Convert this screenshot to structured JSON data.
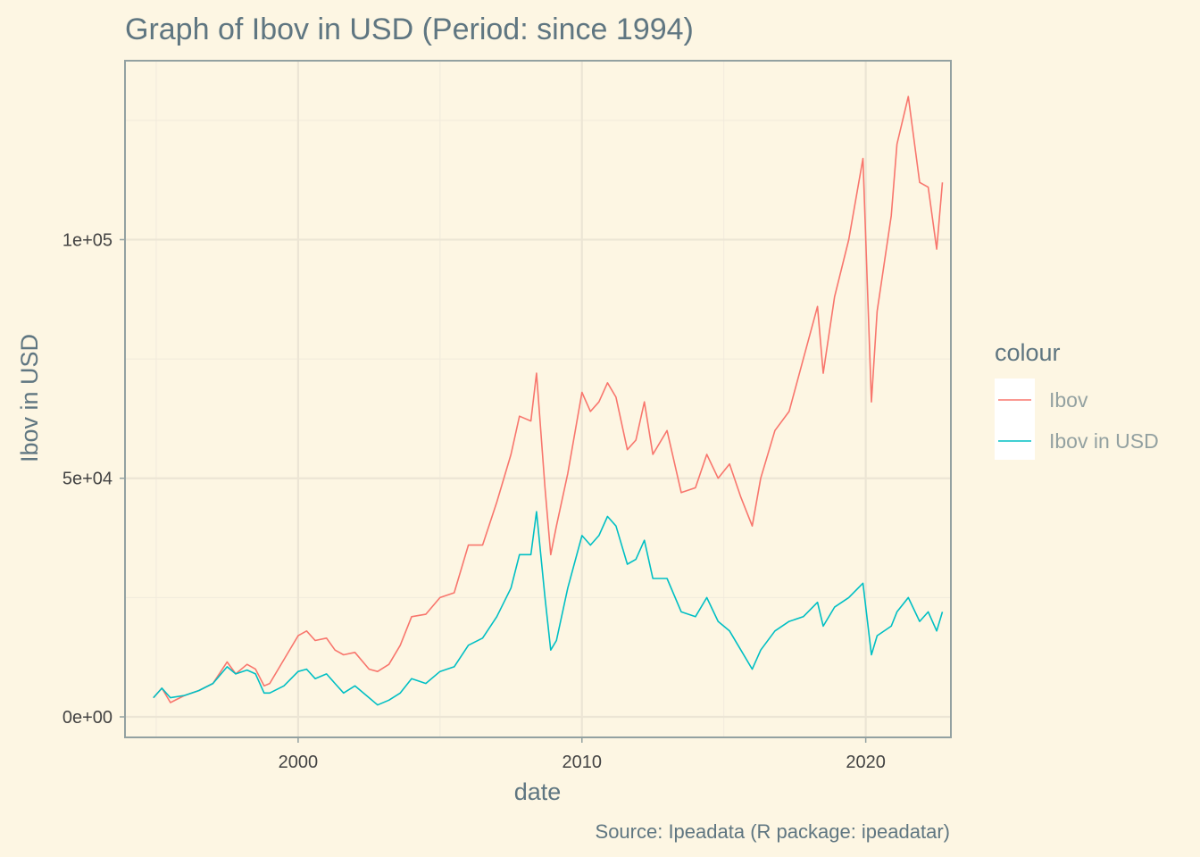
{
  "chart_data": {
    "type": "line",
    "title": "Graph of Ibov in USD (Period: since 1994)",
    "xlabel": "date",
    "ylabel": "Ibov in USD",
    "caption": "Source: Ipeadata (R package: ipeadatar)",
    "xlim": [
      1993.9,
      2023.0
    ],
    "ylim": [
      -4300,
      137500
    ],
    "x_ticks": [
      {
        "value": 2000,
        "label": "2000"
      },
      {
        "value": 2010,
        "label": "2010"
      },
      {
        "value": 2020,
        "label": "2020"
      }
    ],
    "y_ticks": [
      {
        "value": 0,
        "label": "0e+00"
      },
      {
        "value": 50000,
        "label": "5e+04"
      },
      {
        "value": 100000,
        "label": "1e+05"
      }
    ],
    "x_minor": [
      1995,
      2005,
      2015
    ],
    "y_minor": [
      25000,
      75000,
      125000
    ],
    "grid": true,
    "legend": {
      "title": "colour",
      "position": "right"
    },
    "series": [
      {
        "name": "Ibov",
        "color": "#f8766d",
        "points": [
          [
            1994.9,
            4000
          ],
          [
            1995.2,
            6000
          ],
          [
            1995.5,
            3000
          ],
          [
            1996.0,
            4500
          ],
          [
            1996.5,
            5500
          ],
          [
            1997.0,
            7000
          ],
          [
            1997.5,
            11500
          ],
          [
            1997.8,
            9000
          ],
          [
            1998.2,
            11000
          ],
          [
            1998.5,
            10000
          ],
          [
            1998.8,
            6500
          ],
          [
            1999.0,
            7000
          ],
          [
            1999.5,
            12000
          ],
          [
            2000.0,
            17000
          ],
          [
            2000.3,
            18000
          ],
          [
            2000.6,
            16000
          ],
          [
            2001.0,
            16500
          ],
          [
            2001.3,
            14000
          ],
          [
            2001.6,
            13000
          ],
          [
            2002.0,
            13500
          ],
          [
            2002.5,
            10000
          ],
          [
            2002.8,
            9500
          ],
          [
            2003.2,
            11000
          ],
          [
            2003.6,
            15000
          ],
          [
            2004.0,
            21000
          ],
          [
            2004.5,
            21500
          ],
          [
            2005.0,
            25000
          ],
          [
            2005.5,
            26000
          ],
          [
            2006.0,
            36000
          ],
          [
            2006.5,
            36000
          ],
          [
            2007.0,
            45000
          ],
          [
            2007.5,
            55000
          ],
          [
            2007.8,
            63000
          ],
          [
            2008.2,
            62000
          ],
          [
            2008.4,
            72000
          ],
          [
            2008.7,
            48000
          ],
          [
            2008.9,
            34000
          ],
          [
            2009.1,
            40000
          ],
          [
            2009.5,
            51000
          ],
          [
            2010.0,
            68000
          ],
          [
            2010.3,
            64000
          ],
          [
            2010.6,
            66000
          ],
          [
            2010.9,
            70000
          ],
          [
            2011.2,
            67000
          ],
          [
            2011.6,
            56000
          ],
          [
            2011.9,
            58000
          ],
          [
            2012.2,
            66000
          ],
          [
            2012.5,
            55000
          ],
          [
            2013.0,
            60000
          ],
          [
            2013.5,
            47000
          ],
          [
            2014.0,
            48000
          ],
          [
            2014.4,
            55000
          ],
          [
            2014.8,
            50000
          ],
          [
            2015.2,
            53000
          ],
          [
            2015.6,
            46000
          ],
          [
            2016.0,
            40000
          ],
          [
            2016.3,
            50000
          ],
          [
            2016.8,
            60000
          ],
          [
            2017.3,
            64000
          ],
          [
            2017.8,
            75000
          ],
          [
            2018.3,
            86000
          ],
          [
            2018.5,
            72000
          ],
          [
            2018.9,
            88000
          ],
          [
            2019.4,
            100000
          ],
          [
            2019.9,
            117000
          ],
          [
            2020.2,
            66000
          ],
          [
            2020.4,
            85000
          ],
          [
            2020.9,
            105000
          ],
          [
            2021.1,
            120000
          ],
          [
            2021.5,
            130000
          ],
          [
            2021.9,
            112000
          ],
          [
            2022.2,
            111000
          ],
          [
            2022.5,
            98000
          ],
          [
            2022.7,
            112000
          ]
        ]
      },
      {
        "name": "Ibov in USD",
        "color": "#00bfc4",
        "points": [
          [
            1994.9,
            4000
          ],
          [
            1995.2,
            6000
          ],
          [
            1995.5,
            4000
          ],
          [
            1996.0,
            4500
          ],
          [
            1996.5,
            5500
          ],
          [
            1997.0,
            7000
          ],
          [
            1997.5,
            10500
          ],
          [
            1997.8,
            9000
          ],
          [
            1998.2,
            9800
          ],
          [
            1998.5,
            9000
          ],
          [
            1998.8,
            5000
          ],
          [
            1999.0,
            5000
          ],
          [
            1999.5,
            6500
          ],
          [
            2000.0,
            9500
          ],
          [
            2000.3,
            10000
          ],
          [
            2000.6,
            8000
          ],
          [
            2001.0,
            9000
          ],
          [
            2001.3,
            7000
          ],
          [
            2001.6,
            5000
          ],
          [
            2002.0,
            6500
          ],
          [
            2002.5,
            4000
          ],
          [
            2002.8,
            2500
          ],
          [
            2003.2,
            3500
          ],
          [
            2003.6,
            5000
          ],
          [
            2004.0,
            8000
          ],
          [
            2004.5,
            7000
          ],
          [
            2005.0,
            9500
          ],
          [
            2005.5,
            10500
          ],
          [
            2006.0,
            15000
          ],
          [
            2006.5,
            16500
          ],
          [
            2007.0,
            21000
          ],
          [
            2007.5,
            27000
          ],
          [
            2007.8,
            34000
          ],
          [
            2008.2,
            34000
          ],
          [
            2008.4,
            43000
          ],
          [
            2008.7,
            25000
          ],
          [
            2008.9,
            14000
          ],
          [
            2009.1,
            16000
          ],
          [
            2009.5,
            27000
          ],
          [
            2010.0,
            38000
          ],
          [
            2010.3,
            36000
          ],
          [
            2010.6,
            38000
          ],
          [
            2010.9,
            42000
          ],
          [
            2011.2,
            40000
          ],
          [
            2011.6,
            32000
          ],
          [
            2011.9,
            33000
          ],
          [
            2012.2,
            37000
          ],
          [
            2012.5,
            29000
          ],
          [
            2013.0,
            29000
          ],
          [
            2013.5,
            22000
          ],
          [
            2014.0,
            21000
          ],
          [
            2014.4,
            25000
          ],
          [
            2014.8,
            20000
          ],
          [
            2015.2,
            18000
          ],
          [
            2015.6,
            14000
          ],
          [
            2016.0,
            10000
          ],
          [
            2016.3,
            14000
          ],
          [
            2016.8,
            18000
          ],
          [
            2017.3,
            20000
          ],
          [
            2017.8,
            21000
          ],
          [
            2018.3,
            24000
          ],
          [
            2018.5,
            19000
          ],
          [
            2018.9,
            23000
          ],
          [
            2019.4,
            25000
          ],
          [
            2019.9,
            28000
          ],
          [
            2020.2,
            13000
          ],
          [
            2020.4,
            17000
          ],
          [
            2020.9,
            19000
          ],
          [
            2021.1,
            22000
          ],
          [
            2021.5,
            25000
          ],
          [
            2021.9,
            20000
          ],
          [
            2022.2,
            22000
          ],
          [
            2022.5,
            18000
          ],
          [
            2022.7,
            22000
          ]
        ]
      }
    ]
  }
}
